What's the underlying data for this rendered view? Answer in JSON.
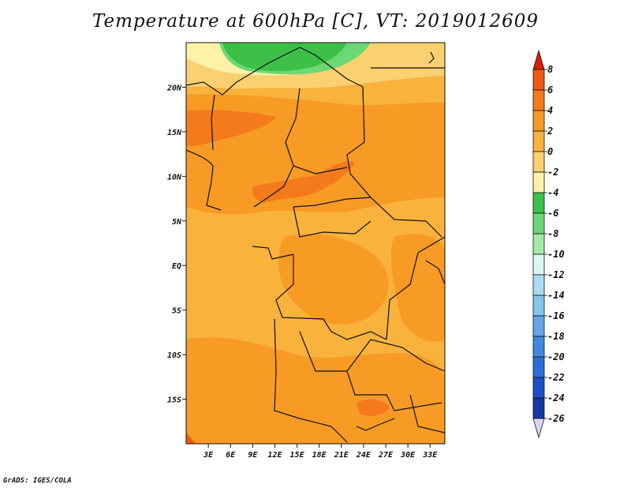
{
  "title": "Temperature at 600hPa [C], VT: 2019012609",
  "credit": "GrADS: IGES/COLA",
  "map": {
    "lon_range": [
      0,
      35
    ],
    "lat_range": [
      -20,
      25
    ],
    "x_ticks": [
      "3E",
      "6E",
      "9E",
      "12E",
      "15E",
      "18E",
      "21E",
      "24E",
      "27E",
      "30E",
      "33E"
    ],
    "x_tick_values": [
      3,
      6,
      9,
      12,
      15,
      18,
      21,
      24,
      27,
      30,
      33
    ],
    "y_ticks": [
      "20N",
      "15N",
      "10N",
      "5N",
      "EQ",
      "5S",
      "10S",
      "15S"
    ],
    "y_tick_values": [
      20,
      15,
      10,
      5,
      0,
      -5,
      -10,
      -15
    ]
  },
  "colorbar": {
    "labels": [
      "8",
      "6",
      "4",
      "2",
      "0",
      "-2",
      "-4",
      "-6",
      "-8",
      "-10",
      "-12",
      "-14",
      "-16",
      "-18",
      "-20",
      "-22",
      "-24",
      "-26"
    ],
    "colors": [
      "#e8380e",
      "#f05a10",
      "#f57a1a",
      "#f79b24",
      "#f9b23c",
      "#fbd070",
      "#fef2a8",
      "#3cc048",
      "#6cd874",
      "#a4eaa4",
      "#dcf4f4",
      "#aadcf4",
      "#84c4ee",
      "#62a6e6",
      "#3f8ade",
      "#2a6ed8",
      "#1a50c8",
      "#123aa0",
      "#0c1a70"
    ],
    "top_arrow_color": "#d81e06",
    "bottom_arrow_color": "#dcd4f4"
  }
}
